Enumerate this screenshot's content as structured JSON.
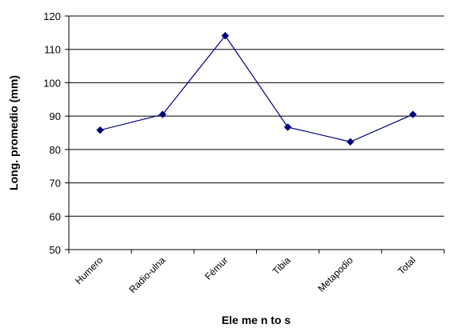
{
  "chart_data": {
    "type": "line",
    "categories": [
      "Humero",
      "Radio-ulna",
      "Fémur",
      "Tibia",
      "Metapodio",
      "Total"
    ],
    "values": [
      85.8,
      90.5,
      114.1,
      86.7,
      82.3,
      90.5
    ],
    "xlabel": "Ele me n to s",
    "ylabel": "Long. promedio (mm)",
    "ylim": [
      50,
      120
    ],
    "yticks": [
      50,
      60,
      70,
      80,
      90,
      100,
      110,
      120
    ],
    "grid": true,
    "legend": "none",
    "line_color": "#000080",
    "marker": "diamond"
  }
}
